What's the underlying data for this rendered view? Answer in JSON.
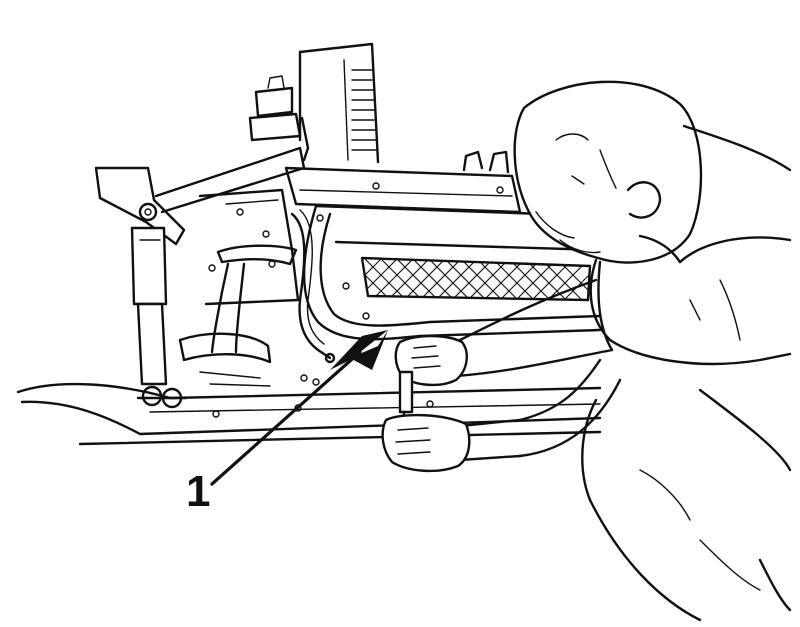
{
  "callouts": [
    {
      "label": "1"
    }
  ],
  "colors": {
    "line": "#111111",
    "background": "#ffffff"
  }
}
